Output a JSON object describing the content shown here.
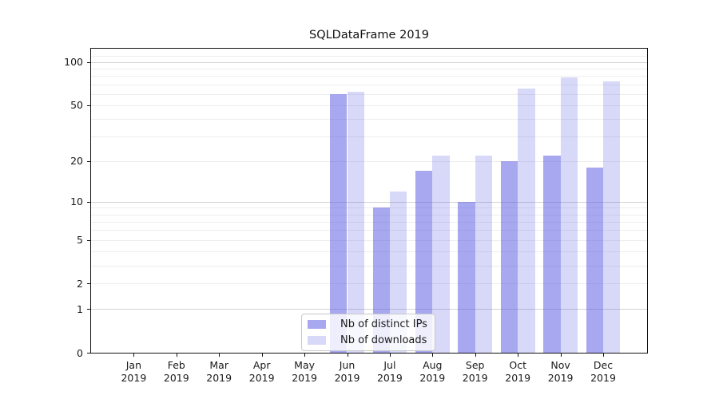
{
  "chart_data": {
    "type": "bar",
    "title": "SQLDataFrame 2019",
    "categories": [
      "Jan",
      "Feb",
      "Mar",
      "Apr",
      "May",
      "Jun",
      "Jul",
      "Aug",
      "Sep",
      "Oct",
      "Nov",
      "Dec"
    ],
    "year_label": "2019",
    "series": [
      {
        "name": "Nb of distinct IPs",
        "color": "rgba(81,81,225,0.5)",
        "values": [
          0,
          0,
          0,
          0,
          0,
          60,
          9,
          17,
          10,
          20,
          22,
          18
        ]
      },
      {
        "name": "Nb of downloads",
        "color": "rgba(81,81,225,0.225)",
        "values": [
          0,
          0,
          0,
          0,
          0,
          62,
          12,
          22,
          22,
          65,
          78,
          73
        ]
      }
    ],
    "yscale": "log1p",
    "yticks": [
      0,
      1,
      2,
      5,
      10,
      20,
      50,
      100
    ],
    "ytick_labels": [
      "0",
      "1",
      "2",
      "5",
      "10",
      "20",
      "50",
      "100"
    ],
    "major_gridlines": [
      1,
      10,
      100
    ],
    "minor_gridlines": [
      2,
      3,
      4,
      5,
      6,
      7,
      8,
      9,
      20,
      30,
      40,
      50,
      60,
      70,
      80,
      90,
      110
    ],
    "ylim": [
      0,
      124
    ],
    "xlim": [
      -1,
      12.03
    ],
    "bar_width": 0.4,
    "grid": true,
    "legend_position": "lower-center"
  }
}
